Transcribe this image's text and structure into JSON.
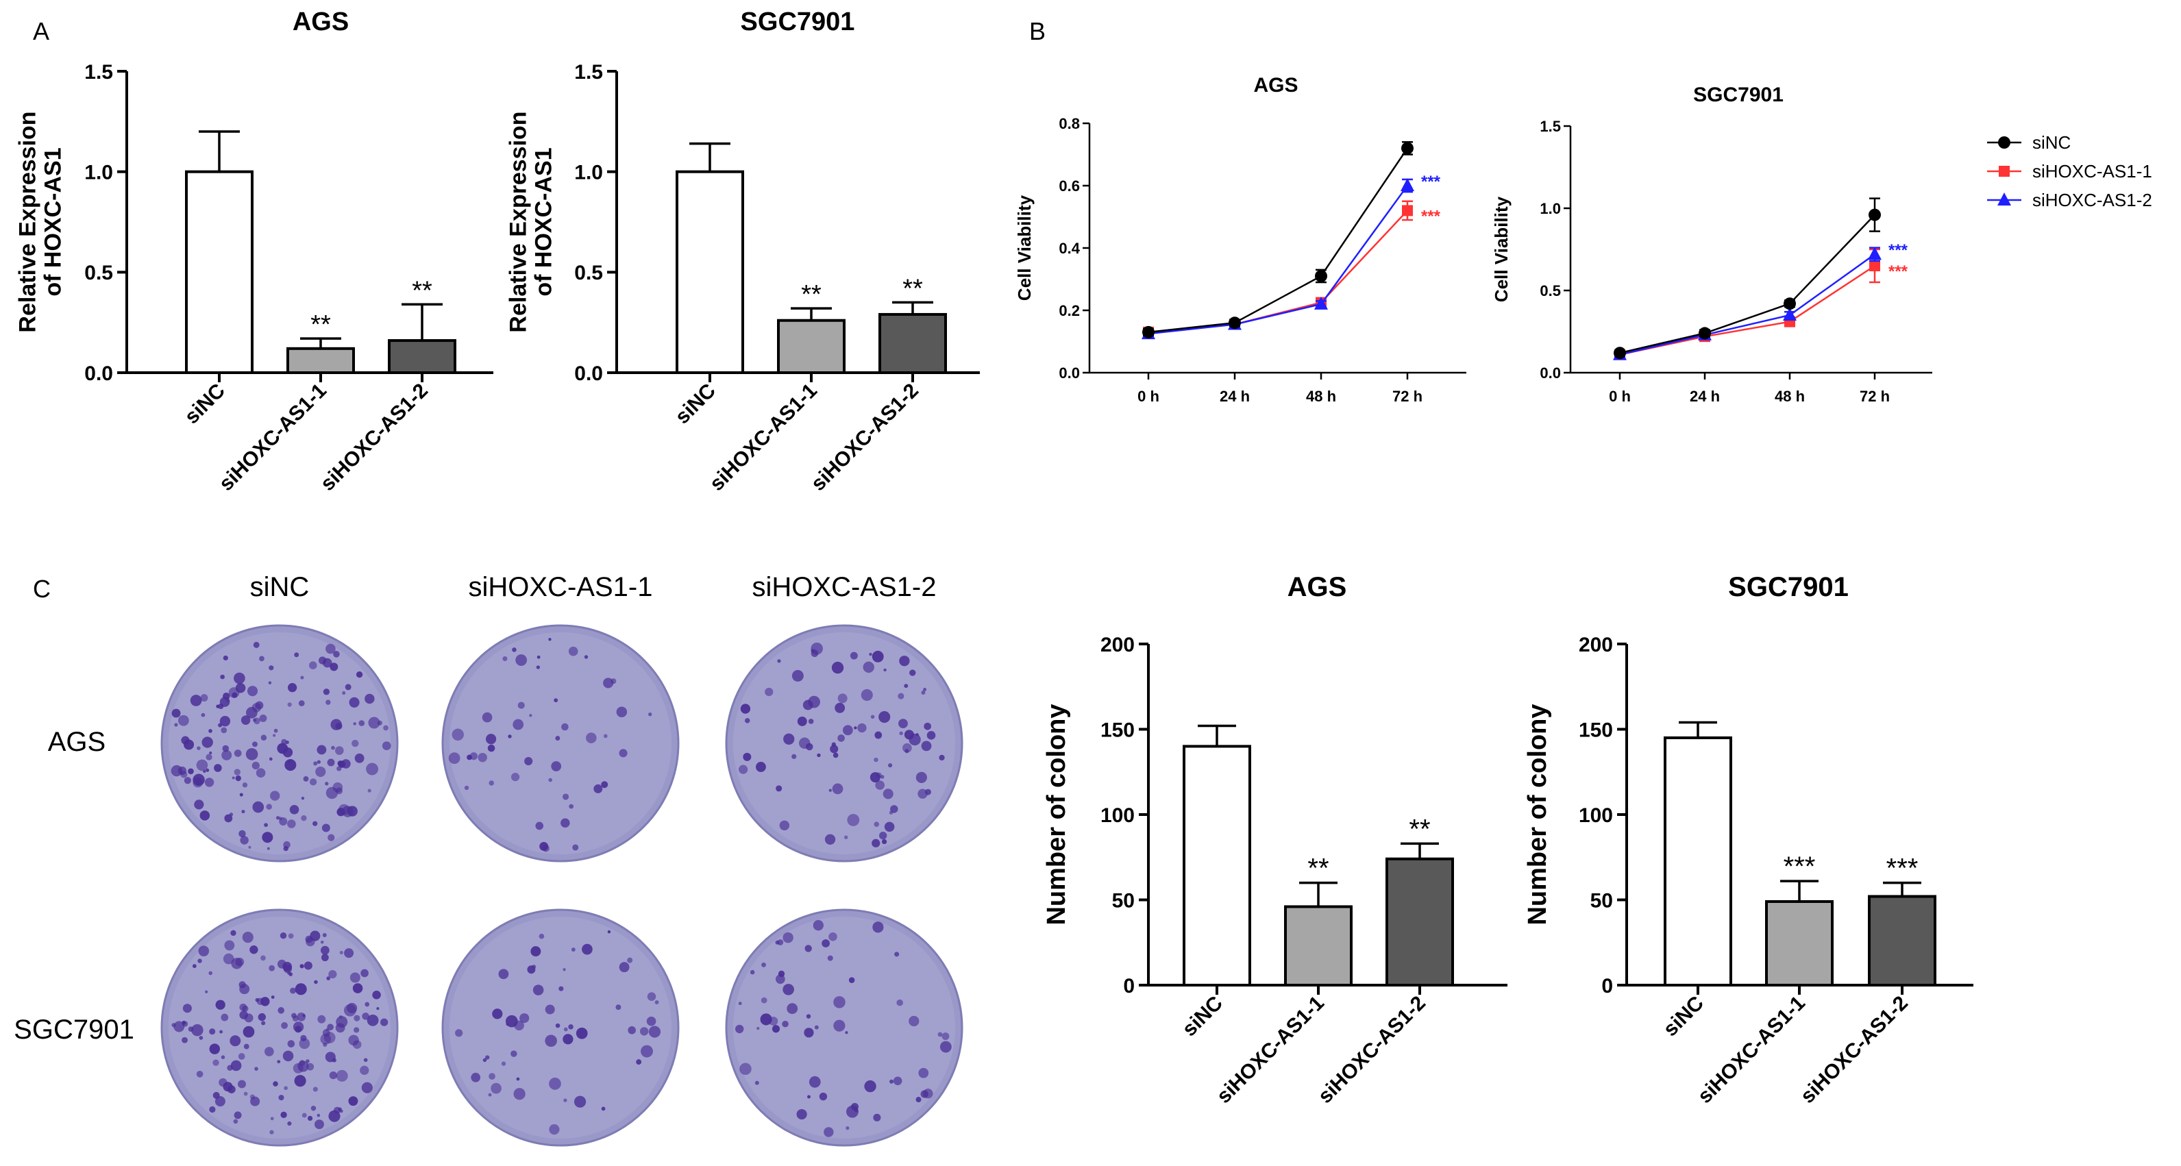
{
  "panels": {
    "a": "A",
    "b": "B",
    "c": "C"
  },
  "colors": {
    "siNC": "#ffffff",
    "si1": "#a6a6a6",
    "si2": "#595959",
    "line_siNC": "#000000",
    "line_si1": "#ff3333",
    "line_si2": "#1f1fff",
    "plate": "#9a98c9",
    "colony": "#4a2f96"
  },
  "icons": {
    "legend_siNC": "circle-marker-icon",
    "legend_si1": "square-marker-icon",
    "legend_si2": "triangle-marker-icon"
  },
  "colony_assay": {
    "columns": [
      "siNC",
      "siHOXC-AS1-1",
      "siHOXC-AS1-2"
    ],
    "rows": [
      "AGS",
      "SGC7901"
    ]
  },
  "chart_data": [
    {
      "type": "bar",
      "title": "AGS",
      "ylabel": [
        "Relative Expression",
        "of HOXC-AS1"
      ],
      "categories": [
        "siNC",
        "siHOXC-AS1-1",
        "siHOXC-AS1-2"
      ],
      "values": [
        1.0,
        0.12,
        0.16
      ],
      "errors": [
        0.2,
        0.05,
        0.18
      ],
      "annotations": [
        "",
        "**",
        "**"
      ],
      "ylim": [
        0,
        1.5
      ],
      "yticks": [
        "0.0",
        "0.5",
        "1.0",
        "1.5"
      ]
    },
    {
      "type": "bar",
      "title": "SGC7901",
      "ylabel": [
        "Relative Expression",
        "of HOXC-AS1"
      ],
      "categories": [
        "siNC",
        "siHOXC-AS1-1",
        "siHOXC-AS1-2"
      ],
      "values": [
        1.0,
        0.26,
        0.29
      ],
      "errors": [
        0.14,
        0.06,
        0.06
      ],
      "annotations": [
        "",
        "**",
        "**"
      ],
      "ylim": [
        0,
        1.5
      ],
      "yticks": [
        "0.0",
        "0.5",
        "1.0",
        "1.5"
      ]
    },
    {
      "type": "line",
      "title": "AGS",
      "ylabel": "Cell Viability",
      "x": [
        "0 h",
        "24 h",
        "48 h",
        "72 h"
      ],
      "ylim": [
        0,
        0.8
      ],
      "yticks": [
        "0.0",
        "0.2",
        "0.4",
        "0.6",
        "0.8"
      ],
      "series": [
        {
          "name": "siNC",
          "values": [
            0.13,
            0.16,
            0.31,
            0.72
          ],
          "errors": [
            0.01,
            0.01,
            0.02,
            0.02
          ]
        },
        {
          "name": "siHOXC-AS1-1",
          "values": [
            0.13,
            0.155,
            0.225,
            0.52
          ],
          "errors": [
            0.01,
            0.01,
            0.01,
            0.03
          ]
        },
        {
          "name": "siHOXC-AS1-2",
          "values": [
            0.125,
            0.155,
            0.22,
            0.6
          ],
          "errors": [
            0.01,
            0.01,
            0.01,
            0.02
          ]
        }
      ],
      "annotations": [
        {
          "series": "siHOXC-AS1-2",
          "text": "***"
        },
        {
          "series": "siHOXC-AS1-1",
          "text": "***"
        }
      ]
    },
    {
      "type": "line",
      "title": "SGC7901",
      "ylabel": "Cell Viability",
      "x": [
        "0 h",
        "24 h",
        "48 h",
        "72 h"
      ],
      "ylim": [
        0,
        1.5
      ],
      "yticks": [
        "0.0",
        "0.5",
        "1.0",
        "1.5"
      ],
      "series": [
        {
          "name": "siNC",
          "values": [
            0.12,
            0.24,
            0.42,
            0.96
          ],
          "errors": [
            0.01,
            0.02,
            0.02,
            0.1
          ]
        },
        {
          "name": "siHOXC-AS1-1",
          "values": [
            0.11,
            0.22,
            0.31,
            0.65
          ],
          "errors": [
            0.01,
            0.02,
            0.02,
            0.1
          ]
        },
        {
          "name": "siHOXC-AS1-2",
          "values": [
            0.11,
            0.23,
            0.35,
            0.72
          ],
          "errors": [
            0.01,
            0.02,
            0.02,
            0.04
          ]
        }
      ],
      "annotations": [
        {
          "series": "siHOXC-AS1-2",
          "text": "***"
        },
        {
          "series": "siHOXC-AS1-1",
          "text": "***"
        }
      ],
      "legend": [
        "siNC",
        "siHOXC-AS1-1",
        "siHOXC-AS1-2"
      ]
    },
    {
      "type": "bar",
      "title": "AGS",
      "ylabel": "Number of colony",
      "categories": [
        "siNC",
        "siHOXC-AS1-1",
        "siHOXC-AS1-2"
      ],
      "values": [
        140,
        46,
        74
      ],
      "errors": [
        12,
        14,
        9
      ],
      "annotations": [
        "",
        "**",
        "**"
      ],
      "ylim": [
        0,
        200
      ],
      "yticks": [
        "0",
        "50",
        "100",
        "150",
        "200"
      ]
    },
    {
      "type": "bar",
      "title": "SGC7901",
      "ylabel": "Number of colony",
      "categories": [
        "siNC",
        "siHOXC-AS1-1",
        "siHOXC-AS1-2"
      ],
      "values": [
        145,
        49,
        52
      ],
      "errors": [
        9,
        12,
        8
      ],
      "annotations": [
        "",
        "***",
        "***"
      ],
      "ylim": [
        0,
        200
      ],
      "yticks": [
        "0",
        "50",
        "100",
        "150",
        "200"
      ]
    }
  ]
}
